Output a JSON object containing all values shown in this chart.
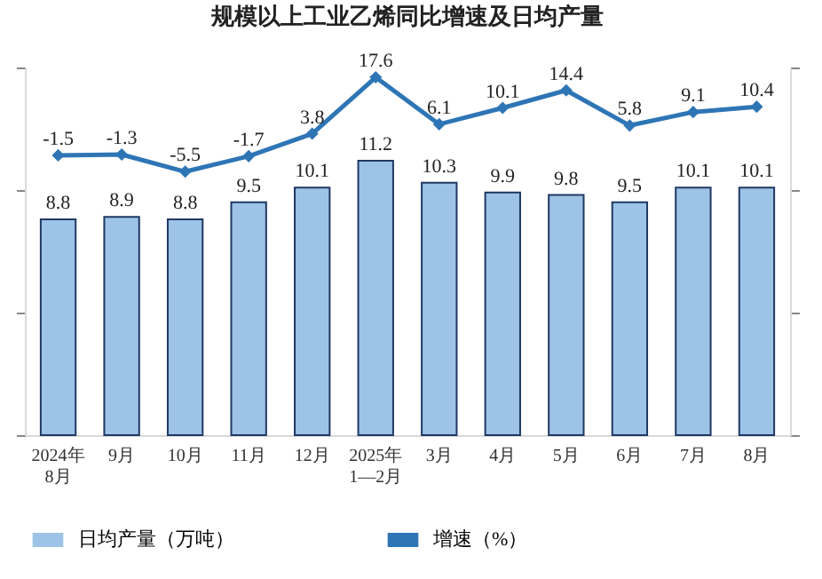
{
  "chart_data": {
    "type": "bar",
    "title": "规模以上工业乙烯同比增速及日均产量",
    "categories": [
      "2024年\n8月",
      "9月",
      "10月",
      "11月",
      "12月",
      "2025年\n1—2月",
      "3月",
      "4月",
      "5月",
      "6月",
      "7月",
      "8月"
    ],
    "series": [
      {
        "name": "日均产量（万吨）",
        "color": "#9dc3e6",
        "values": [
          8.8,
          8.9,
          8.8,
          9.5,
          10.1,
          11.2,
          10.3,
          9.9,
          9.8,
          9.5,
          10.1,
          10.1
        ]
      },
      {
        "name": "增速（%）",
        "type": "line",
        "axis": "y2",
        "color": "#2e75b6",
        "marker": "diamond",
        "values": [
          -1.5,
          -1.3,
          -5.5,
          -1.7,
          3.8,
          17.6,
          6.1,
          10.1,
          14.4,
          5.8,
          9.1,
          10.4
        ]
      }
    ],
    "ylim": [
      0,
      15
    ],
    "yticks": [
      {
        "value": 0,
        "label": null
      },
      {
        "value": 5,
        "label": null
      },
      {
        "value": 10,
        "label": null
      },
      {
        "value": 15,
        "label": null
      }
    ],
    "y2lim": [
      -70,
      20
    ],
    "y2ticks": [
      {
        "value": -70,
        "label": null
      },
      {
        "value": -40,
        "label": null
      },
      {
        "value": -10,
        "label": null
      },
      {
        "value": 20,
        "label": null
      }
    ],
    "tick_labels": "x",
    "data_labels": true,
    "legend": "bottom",
    "grid": false
  }
}
